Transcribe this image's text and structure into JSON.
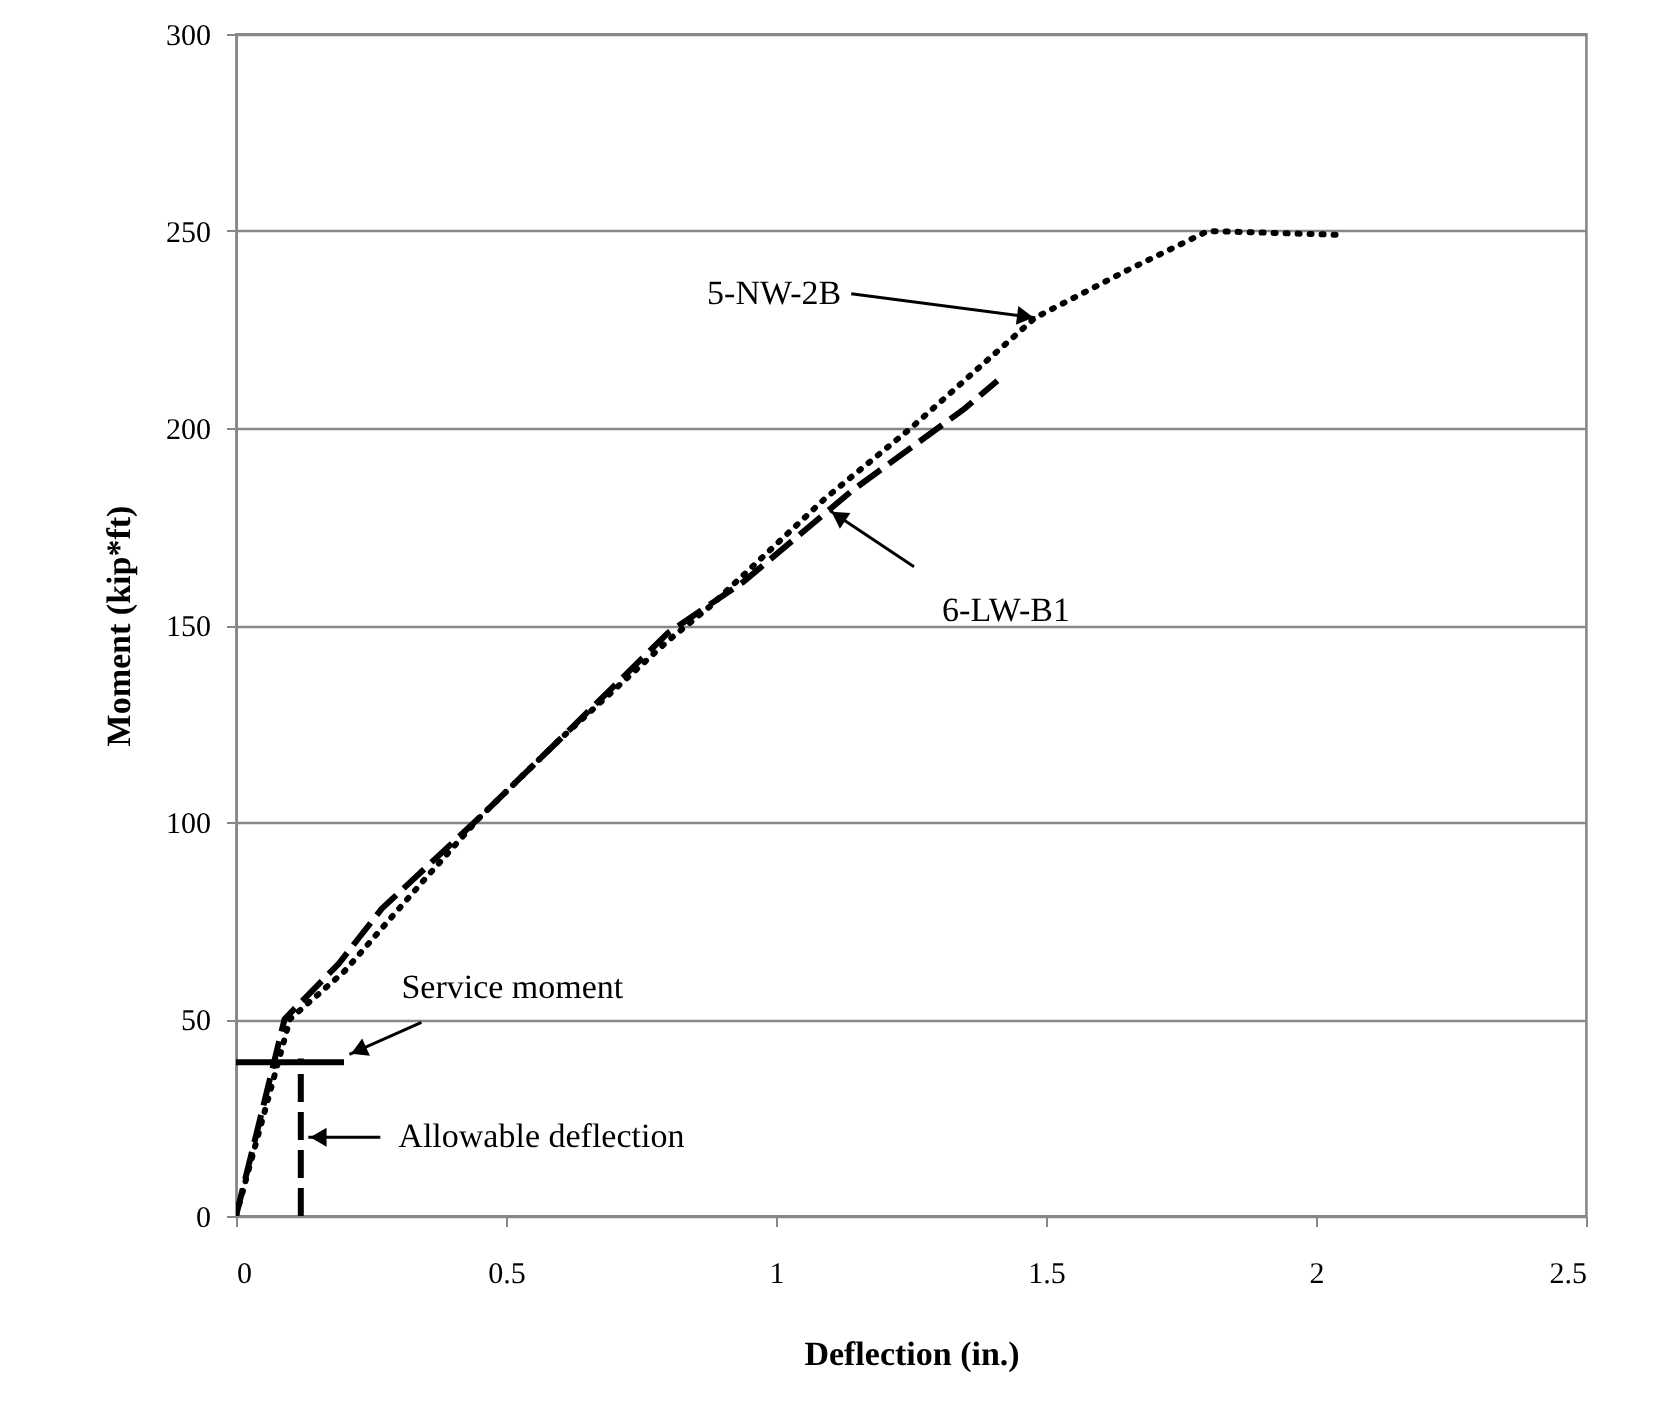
{
  "chart_data": {
    "type": "line",
    "xlabel": "Deflection (in.)",
    "ylabel": "Moment (kip*ft)",
    "xlim": [
      0,
      2.5
    ],
    "xticks": [
      0,
      0.5,
      1,
      1.5,
      2,
      2.5
    ],
    "ylim": [
      0,
      300
    ],
    "yticks": [
      0,
      50,
      100,
      150,
      200,
      250,
      300
    ],
    "grid": "y",
    "series": [
      {
        "color": "#000000",
        "line_style": "dotted",
        "x": [
          0,
          0.05,
          0.1,
          0.2,
          0.34,
          0.45,
          0.6,
          0.8,
          0.88,
          1.09,
          1.25,
          1.48,
          1.65,
          1.8,
          2.05
        ],
        "values": [
          0,
          25,
          50,
          62,
          84,
          101,
          121,
          146,
          155,
          182,
          200,
          228,
          240,
          250,
          249
        ]
      },
      {
        "color": "#000000",
        "line_style": "dashed",
        "x": [
          0,
          0.04,
          0.09,
          0.19,
          0.27,
          0.45,
          0.6,
          0.8,
          0.94,
          1.14,
          1.24,
          1.35,
          1.41
        ],
        "values": [
          0,
          22,
          50,
          64,
          78,
          101,
          121,
          148,
          161,
          184,
          194,
          205,
          212
        ]
      },
      {
        "color": "#000000",
        "line_style": "solid",
        "x": [
          0,
          0.2
        ],
        "values": [
          39,
          39
        ]
      },
      {
        "color": "#000000",
        "line_style": "dashed",
        "x": [
          0.12,
          0.12
        ],
        "values": [
          0,
          40
        ]
      }
    ],
    "annotations": [
      {
        "text": "5-NW-2B",
        "x": 1.48,
        "y": 228
      },
      {
        "text": "6-LW-B1",
        "x": 1.1,
        "y": 179
      },
      {
        "text": "Service moment",
        "x": 0.21,
        "y": 41
      },
      {
        "text": "Allowable deflection",
        "x": 0.134,
        "y": 20
      }
    ]
  }
}
